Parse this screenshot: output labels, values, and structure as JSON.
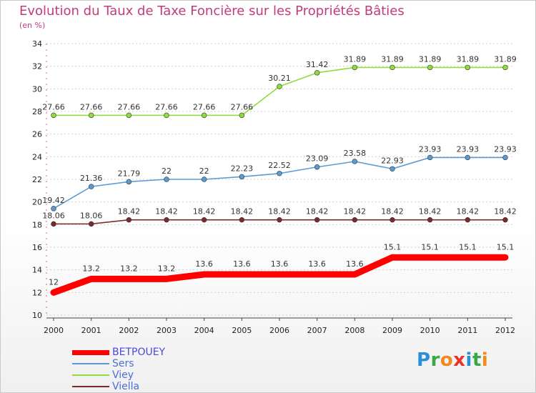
{
  "header": {
    "title": "Evolution du Taux de Taxe Foncière sur les Propriétés Bâties",
    "subtitle": "(en %)"
  },
  "chart_data": {
    "type": "line",
    "title": "Evolution du Taux de Taxe Foncière sur les Propriétés Bâties",
    "subtitle": "(en %)",
    "xlabel": "",
    "ylabel": "",
    "ylim": [
      10,
      34
    ],
    "y_ticks": [
      10,
      12,
      14,
      16,
      18,
      20,
      22,
      24,
      26,
      28,
      30,
      32,
      34
    ],
    "x": [
      "2000",
      "2001",
      "2002",
      "2003",
      "2004",
      "2005",
      "2006",
      "2007",
      "2008",
      "2009",
      "2010",
      "2011",
      "2012"
    ],
    "grid": "horizontal",
    "legend_position": "bottom-left",
    "series": [
      {
        "name": "BETPOUEY",
        "color": "#ff0000",
        "label_color": "#4a4adb",
        "values": [
          12,
          13.2,
          13.2,
          13.2,
          13.6,
          13.6,
          13.6,
          13.6,
          13.6,
          15.1,
          15.1,
          15.1,
          15.1
        ],
        "labels": [
          "12",
          "13.2",
          "13.2",
          "13.2",
          "13.6",
          "13.6",
          "13.6",
          "13.6",
          "13.6",
          "15.1",
          "15.1",
          "15.1",
          "15.1"
        ]
      },
      {
        "name": "Sers",
        "color": "#5b9bd5",
        "label_color": "#5b9bd5",
        "values": [
          19.42,
          21.36,
          21.79,
          22,
          22,
          22.23,
          22.52,
          23.09,
          23.58,
          22.93,
          23.93,
          23.93,
          23.93
        ],
        "labels": [
          "19.42",
          "21.36",
          "21.79",
          "22",
          "22",
          "22.23",
          "22.52",
          "23.09",
          "23.58",
          "22.93",
          "23.93",
          "23.93",
          "23.93"
        ]
      },
      {
        "name": "Viey",
        "color": "#8fdc3a",
        "label_color": "#8fdc3a",
        "values": [
          27.66,
          27.66,
          27.66,
          27.66,
          27.66,
          27.66,
          30.21,
          31.42,
          31.89,
          31.89,
          31.89,
          31.89,
          31.89
        ],
        "labels": [
          "27.66",
          "27.66",
          "27.66",
          "27.66",
          "27.66",
          "27.66",
          "30.21",
          "31.42",
          "31.89",
          "31.89",
          "31.89",
          "31.89",
          "31.89"
        ]
      },
      {
        "name": "Viella",
        "color": "#7a2a2a",
        "label_color": "#5b6bd5",
        "values": [
          18.06,
          18.06,
          18.42,
          18.42,
          18.42,
          18.42,
          18.42,
          18.42,
          18.42,
          18.42,
          18.42,
          18.42,
          18.42
        ],
        "labels": [
          "18.06",
          "18.06",
          "18.42",
          "18.42",
          "18.42",
          "18.42",
          "18.42",
          "18.42",
          "18.42",
          "18.42",
          "18.42",
          "18.42",
          "18.42"
        ]
      }
    ]
  },
  "legend": {
    "items": [
      {
        "label": "BETPOUEY",
        "color": "#ff0000",
        "label_color": "#4a4adb"
      },
      {
        "label": "Sers",
        "color": "#5b9bd5",
        "label_color": "#4a6fdb"
      },
      {
        "label": "Viey",
        "color": "#8fdc3a",
        "label_color": "#4a6fdb"
      },
      {
        "label": "Viella",
        "color": "#7a2a2a",
        "label_color": "#4a6fdb"
      }
    ]
  },
  "logo": {
    "text": "Proxiti",
    "letters": [
      {
        "ch": "P",
        "color": "#2a8fd6"
      },
      {
        "ch": "r",
        "color": "#3aa84a"
      },
      {
        "ch": "o",
        "color": "#f08a1c"
      },
      {
        "ch": "x",
        "color": "#e8342a"
      },
      {
        "ch": "i",
        "color": "#2a8fd6"
      },
      {
        "ch": "t",
        "color": "#3aa84a"
      },
      {
        "ch": "i",
        "color": "#f08a1c"
      }
    ]
  }
}
